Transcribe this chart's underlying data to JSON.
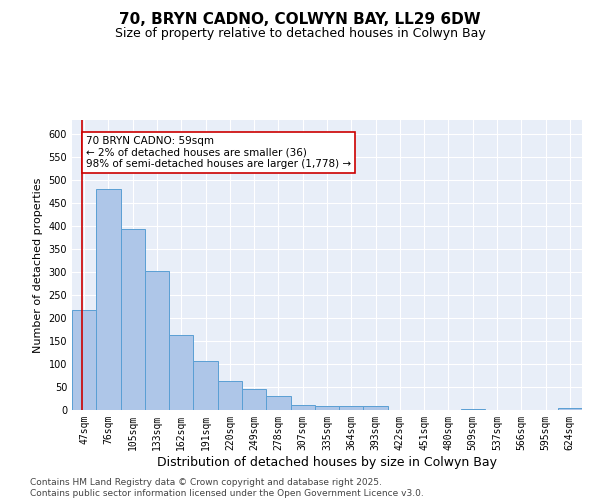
{
  "title": "70, BRYN CADNO, COLWYN BAY, LL29 6DW",
  "subtitle": "Size of property relative to detached houses in Colwyn Bay",
  "xlabel": "Distribution of detached houses by size in Colwyn Bay",
  "ylabel": "Number of detached properties",
  "categories": [
    "47sqm",
    "76sqm",
    "105sqm",
    "133sqm",
    "162sqm",
    "191sqm",
    "220sqm",
    "249sqm",
    "278sqm",
    "307sqm",
    "335sqm",
    "364sqm",
    "393sqm",
    "422sqm",
    "451sqm",
    "480sqm",
    "509sqm",
    "537sqm",
    "566sqm",
    "595sqm",
    "624sqm"
  ],
  "values": [
    218,
    480,
    393,
    302,
    163,
    107,
    63,
    46,
    30,
    10,
    9,
    9,
    8,
    0,
    0,
    0,
    3,
    0,
    0,
    0,
    4
  ],
  "bar_color": "#aec6e8",
  "bar_edge_color": "#5a9fd4",
  "vline_color": "#cc0000",
  "annotation_text": "70 BRYN CADNO: 59sqm\n← 2% of detached houses are smaller (36)\n98% of semi-detached houses are larger (1,778) →",
  "annotation_box_color": "#ffffff",
  "annotation_box_edge_color": "#cc0000",
  "ylim": [
    0,
    630
  ],
  "yticks": [
    0,
    50,
    100,
    150,
    200,
    250,
    300,
    350,
    400,
    450,
    500,
    550,
    600
  ],
  "background_color": "#e8eef8",
  "footer_text": "Contains HM Land Registry data © Crown copyright and database right 2025.\nContains public sector information licensed under the Open Government Licence v3.0.",
  "title_fontsize": 11,
  "subtitle_fontsize": 9,
  "xlabel_fontsize": 9,
  "ylabel_fontsize": 8,
  "tick_fontsize": 7,
  "annotation_fontsize": 7.5,
  "footer_fontsize": 6.5
}
